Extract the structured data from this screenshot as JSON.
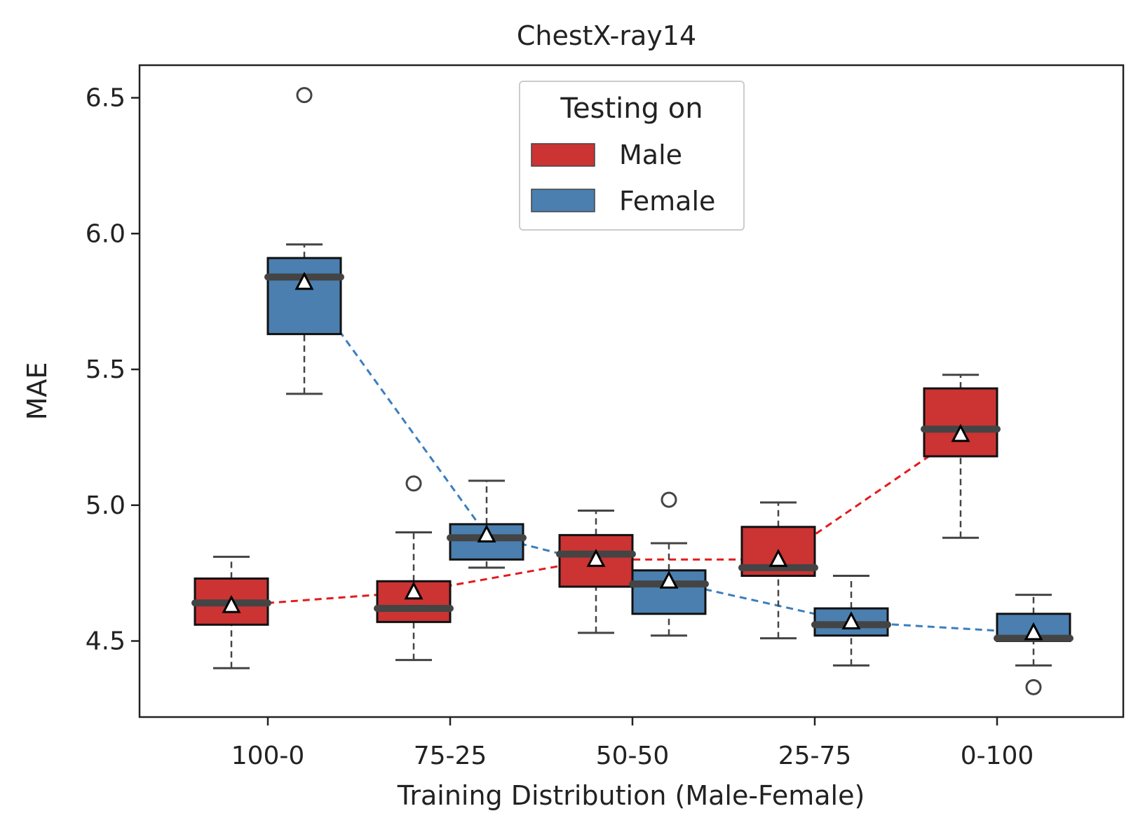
{
  "chart_data": {
    "type": "box",
    "title": "ChestX-ray14",
    "xlabel": "Training Distribution (Male-Female)",
    "ylabel": "MAE",
    "categories": [
      "100-0",
      "75-25",
      "50-50",
      "25-75",
      "0-100"
    ],
    "ylim": [
      4.22,
      6.62
    ],
    "yticks": [
      4.5,
      5.0,
      5.5,
      6.0,
      6.5
    ],
    "ytick_labels": [
      "4.5",
      "5.0",
      "5.5",
      "6.0",
      "6.5"
    ],
    "grid": false,
    "legend": {
      "title": "Testing on",
      "position": "top-center",
      "entries": [
        "Male",
        "Female"
      ]
    },
    "series": [
      {
        "name": "Male",
        "color": "#cc3333",
        "line_color": "#e31a1c",
        "boxes": [
          {
            "whisker_low": 4.4,
            "q1": 4.56,
            "median": 4.64,
            "q3": 4.73,
            "whisker_high": 4.81,
            "mean": 4.63,
            "outliers": []
          },
          {
            "whisker_low": 4.43,
            "q1": 4.57,
            "median": 4.62,
            "q3": 4.72,
            "whisker_high": 4.9,
            "mean": 4.68,
            "outliers": [
              5.08
            ]
          },
          {
            "whisker_low": 4.53,
            "q1": 4.7,
            "median": 4.82,
            "q3": 4.89,
            "whisker_high": 4.98,
            "mean": 4.8,
            "outliers": []
          },
          {
            "whisker_low": 4.51,
            "q1": 4.74,
            "median": 4.77,
            "q3": 4.92,
            "whisker_high": 5.01,
            "mean": 4.8,
            "outliers": []
          },
          {
            "whisker_low": 4.88,
            "q1": 5.18,
            "median": 5.28,
            "q3": 5.43,
            "whisker_high": 5.48,
            "mean": 5.26,
            "outliers": []
          }
        ]
      },
      {
        "name": "Female",
        "color": "#4a7fb0",
        "line_color": "#3a7ebf",
        "boxes": [
          {
            "whisker_low": 5.41,
            "q1": 5.63,
            "median": 5.84,
            "q3": 5.91,
            "whisker_high": 5.96,
            "mean": 5.82,
            "outliers": [
              6.51
            ]
          },
          {
            "whisker_low": 4.77,
            "q1": 4.8,
            "median": 4.88,
            "q3": 4.93,
            "whisker_high": 5.09,
            "mean": 4.89,
            "outliers": []
          },
          {
            "whisker_low": 4.52,
            "q1": 4.6,
            "median": 4.71,
            "q3": 4.76,
            "whisker_high": 4.86,
            "mean": 4.72,
            "outliers": [
              5.02
            ]
          },
          {
            "whisker_low": 4.41,
            "q1": 4.52,
            "median": 4.56,
            "q3": 4.62,
            "whisker_high": 4.74,
            "mean": 4.57,
            "outliers": []
          },
          {
            "whisker_low": 4.41,
            "q1": 4.5,
            "median": 4.51,
            "q3": 4.6,
            "whisker_high": 4.67,
            "mean": 4.53,
            "outliers": [
              4.33
            ]
          }
        ]
      }
    ]
  }
}
